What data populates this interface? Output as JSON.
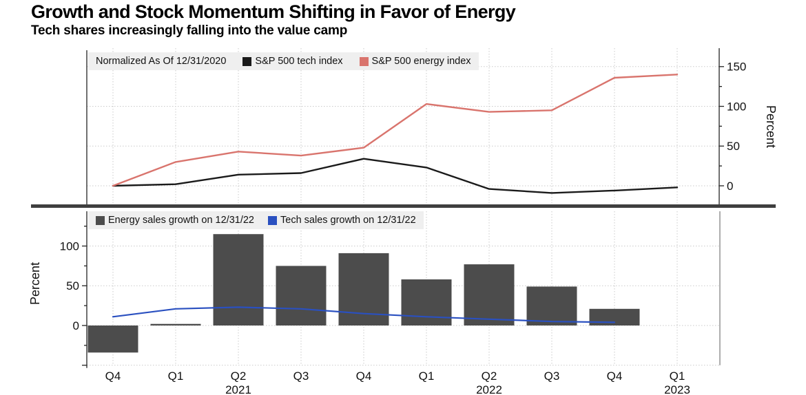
{
  "header": {
    "title": "Growth and Stock Momentum Shifting in Favor of Energy",
    "subtitle": "Tech shares increasingly falling into the value camp"
  },
  "colors": {
    "tech_index": "#1a1a1a",
    "energy_index": "#d9746d",
    "energy_bars": "#4c4c4c",
    "tech_sales": "#2a50c0",
    "grid": "#c9c9c9",
    "axis": "#222222",
    "legend_bg": "#efefef",
    "divider": "#3f3f3f"
  },
  "x_axis": {
    "labels": [
      "Q4",
      "Q1",
      "Q2",
      "Q3",
      "Q4",
      "Q1",
      "Q2",
      "Q3",
      "Q4",
      "Q1"
    ],
    "years": [
      {
        "label": "2021",
        "index": 2
      },
      {
        "label": "2022",
        "index": 6
      },
      {
        "label": "2023",
        "index": 9
      }
    ]
  },
  "chart_data": [
    {
      "id": "index-performance",
      "type": "line",
      "legend_note": "Normalized As Of 12/31/2020",
      "ylabel": "Percent",
      "y_axis_side": "right",
      "ylim": [
        -25,
        165
      ],
      "yticks": [
        0,
        50,
        100,
        150
      ],
      "minor_ticks": [
        25,
        75,
        125
      ],
      "grid": true,
      "legend_position": "top-left",
      "categories": [
        "Q4 2020",
        "Q1 2021",
        "Q2 2021",
        "Q3 2021",
        "Q4 2021",
        "Q1 2022",
        "Q2 2022",
        "Q3 2022",
        "Q4 2022",
        "Q1 2023"
      ],
      "series": [
        {
          "name": "S&P 500 tech index",
          "color_key": "tech_index",
          "values": [
            0,
            2,
            14,
            16,
            34,
            23,
            -4,
            -9,
            -6,
            -2
          ]
        },
        {
          "name": "S&P 500 energy index",
          "color_key": "energy_index",
          "values": [
            0,
            30,
            43,
            38,
            48,
            103,
            93,
            95,
            136,
            140
          ]
        }
      ]
    },
    {
      "id": "sales-growth",
      "type": "bar",
      "ylabel": "Percent",
      "y_axis_side": "left",
      "ylim": [
        -55,
        130
      ],
      "yticks": [
        0,
        50,
        100
      ],
      "minor_ticks": [
        -25,
        25,
        75,
        125
      ],
      "grid": true,
      "legend_position": "top-left",
      "categories": [
        "Q4 2020",
        "Q1 2021",
        "Q2 2021",
        "Q3 2021",
        "Q4 2021",
        "Q1 2022",
        "Q2 2022",
        "Q3 2022",
        "Q4 2022",
        "Q1 2023"
      ],
      "series": [
        {
          "name": "Energy sales growth on 12/31/22",
          "kind": "bar",
          "color_key": "energy_bars",
          "values": [
            -34,
            2,
            115,
            75,
            91,
            58,
            77,
            49,
            21,
            null
          ]
        },
        {
          "name": "Tech sales growth on 12/31/22",
          "kind": "line",
          "color_key": "tech_sales",
          "values": [
            11,
            21,
            23,
            21,
            15,
            11,
            8,
            5,
            4,
            null
          ]
        }
      ]
    }
  ]
}
